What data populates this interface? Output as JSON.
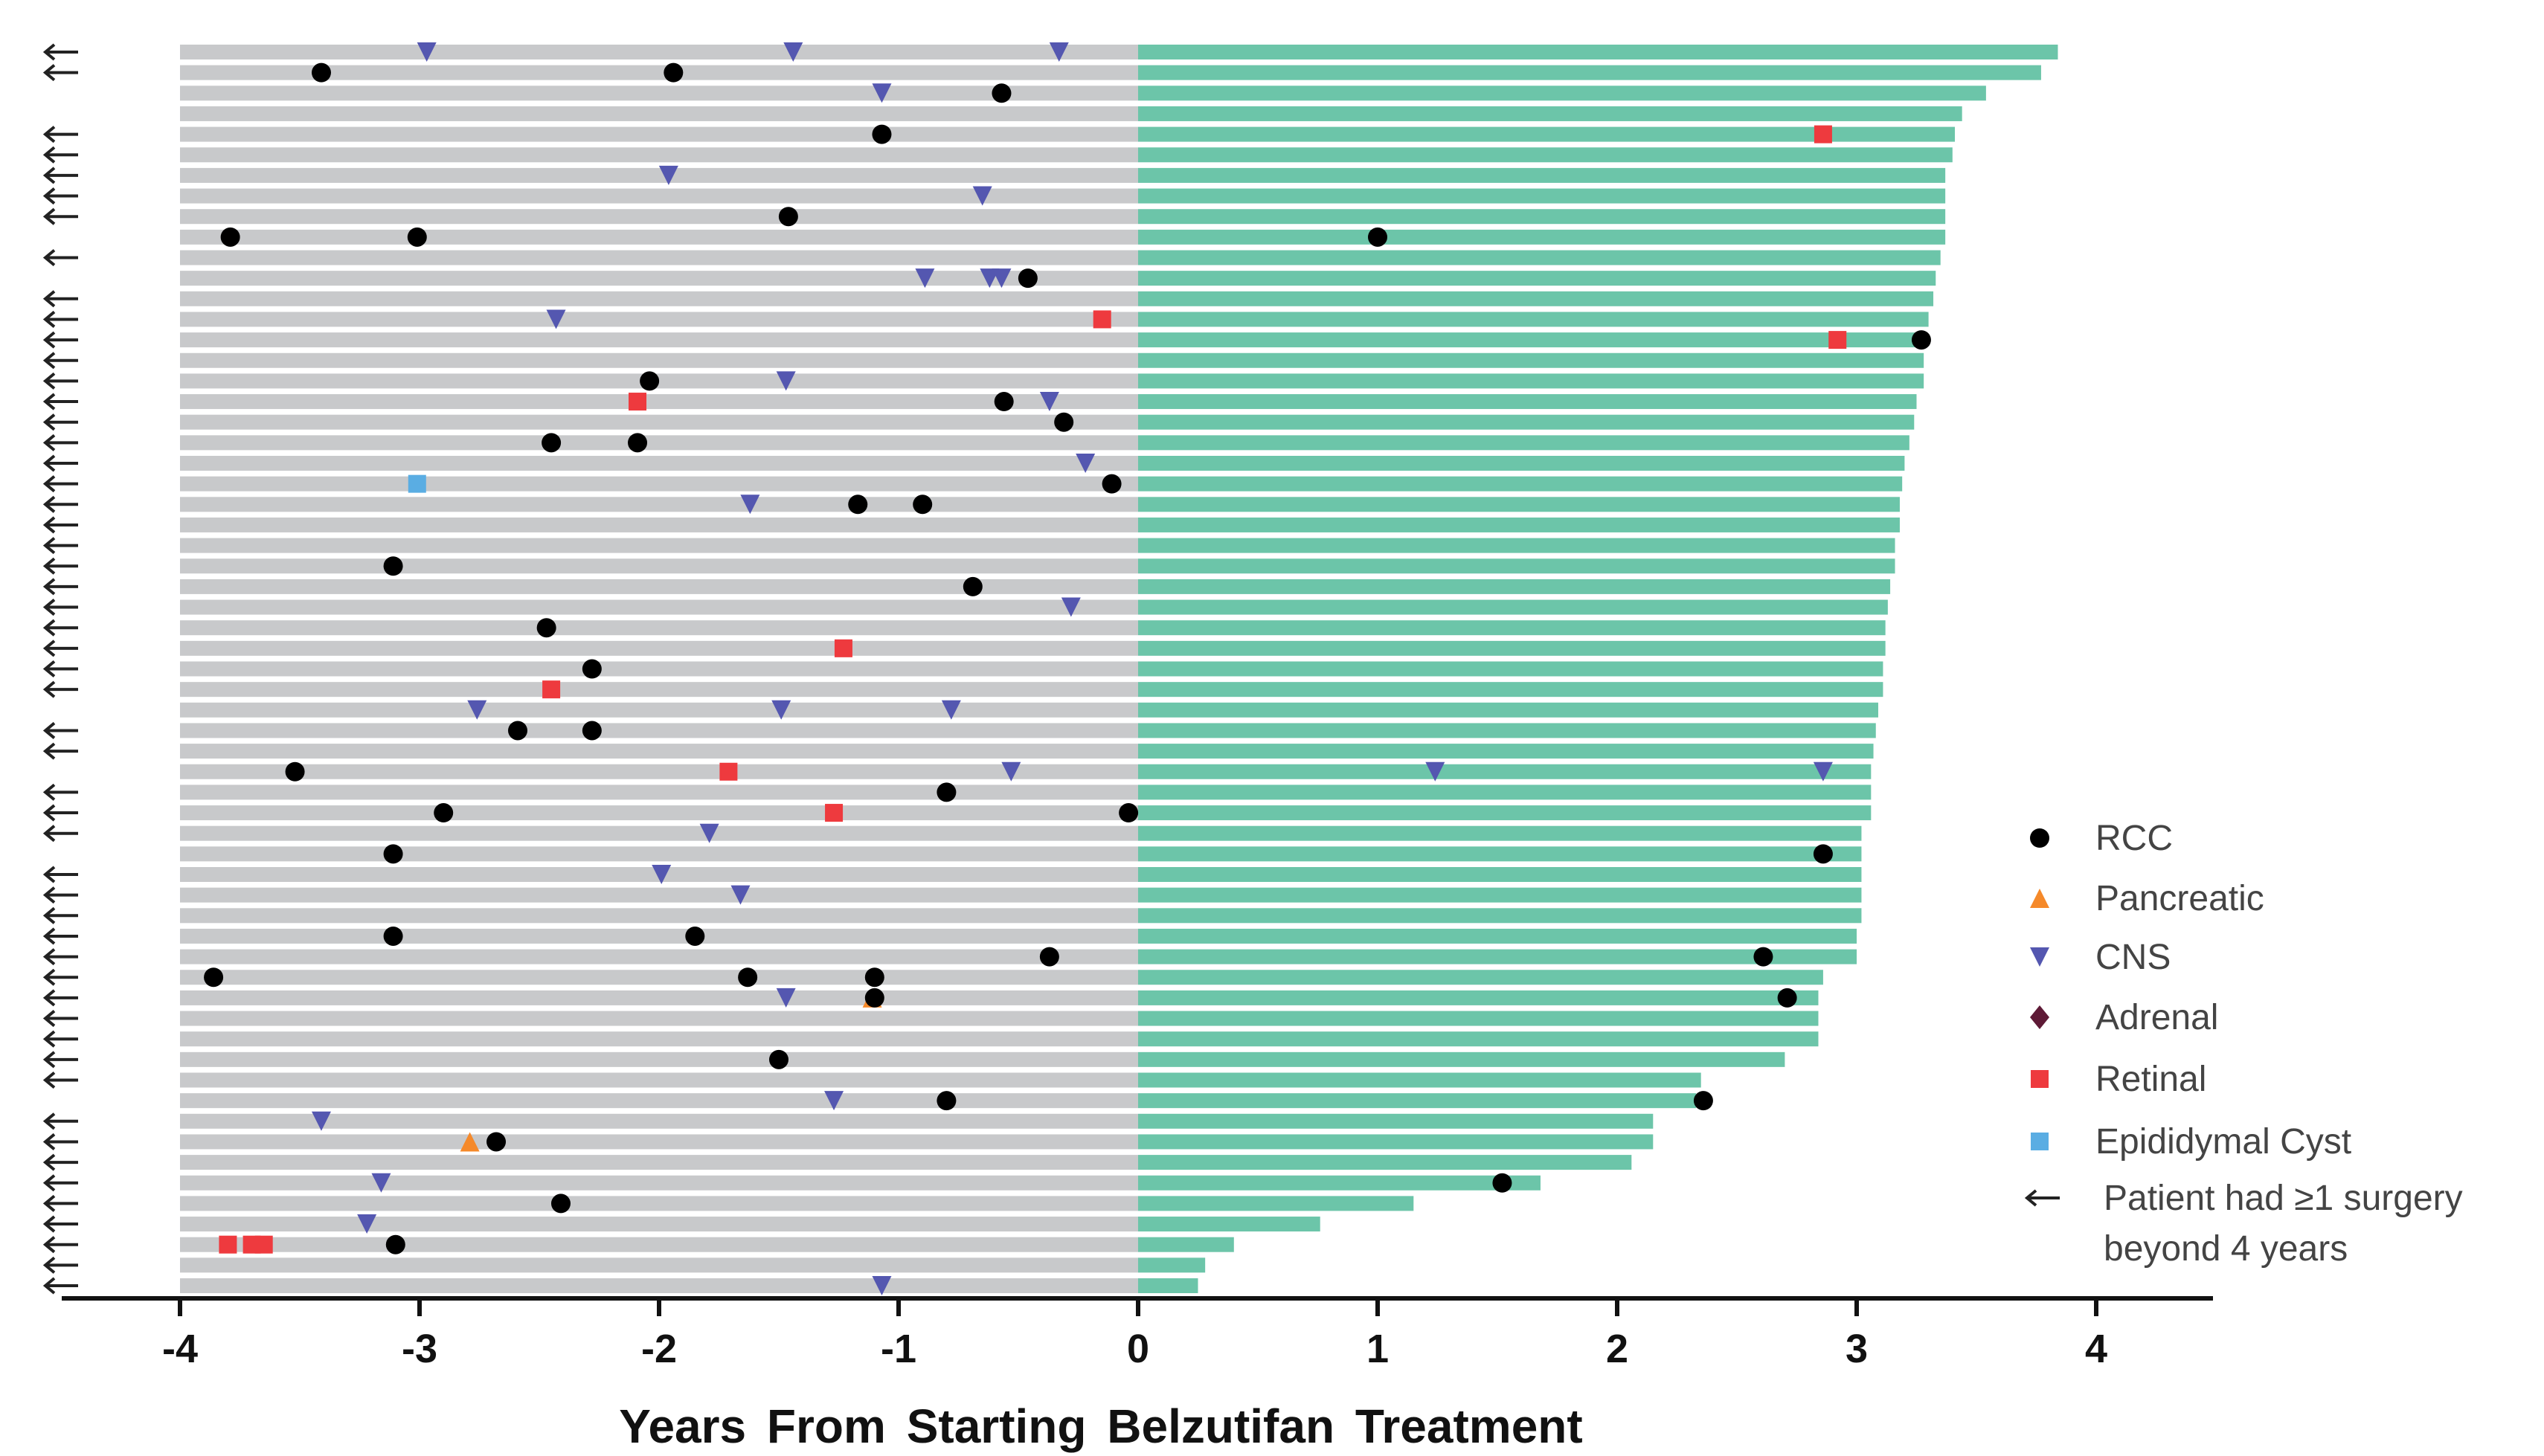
{
  "chart_data": {
    "type": "swimmer",
    "title": "",
    "xlabel": "Years From Starting Belzutifan Treatment",
    "ylabel": "",
    "xlim": [
      -4,
      4
    ],
    "xticks": [
      "-4",
      "-3",
      "-2",
      "-1",
      "0",
      "1",
      "2",
      "3",
      "4"
    ],
    "pre_treatment_start": -4,
    "colors": {
      "pre_bar": "#c8c9cb",
      "treatment_bar": "#6cc5a9",
      "RCC": "#000000",
      "Pancreatic": "#f5892a",
      "CNS": "#5457b0",
      "Adrenal": "#5e1a36",
      "Retinal": "#ee3a3e",
      "Epididymal Cyst": "#5aade3"
    },
    "legend_position": "right",
    "legend": [
      {
        "name": "RCC",
        "shape": "circle"
      },
      {
        "name": "Pancreatic",
        "shape": "triangle-up"
      },
      {
        "name": "CNS",
        "shape": "triangle-down"
      },
      {
        "name": "Adrenal",
        "shape": "diamond"
      },
      {
        "name": "Retinal",
        "shape": "square"
      },
      {
        "name": "Epididymal Cyst",
        "shape": "square"
      }
    ],
    "arrow_legend": [
      "Patient had ≥1 surgery",
      "beyond 4 years"
    ],
    "treatment_years": [
      3.84,
      3.77,
      3.54,
      3.44,
      3.41,
      3.4,
      3.37,
      3.37,
      3.37,
      3.37,
      3.35,
      3.33,
      3.32,
      3.3,
      3.29,
      3.28,
      3.28,
      3.25,
      3.24,
      3.22,
      3.2,
      3.19,
      3.18,
      3.18,
      3.16,
      3.16,
      3.14,
      3.13,
      3.12,
      3.12,
      3.11,
      3.11,
      3.09,
      3.08,
      3.07,
      3.06,
      3.06,
      3.06,
      3.02,
      3.02,
      3.02,
      3.02,
      3.02,
      3.0,
      3.0,
      2.86,
      2.84,
      2.84,
      2.84,
      2.7,
      2.35,
      2.33,
      2.15,
      2.15,
      2.06,
      1.68,
      1.15,
      0.76,
      0.4,
      0.28,
      0.25
    ],
    "surgery_beyond_4y": [
      1,
      1,
      0,
      0,
      1,
      1,
      1,
      1,
      1,
      0,
      1,
      0,
      1,
      1,
      1,
      1,
      1,
      1,
      1,
      1,
      1,
      1,
      1,
      1,
      1,
      1,
      1,
      1,
      1,
      1,
      1,
      1,
      0,
      1,
      1,
      0,
      1,
      1,
      1,
      0,
      1,
      1,
      1,
      1,
      1,
      1,
      1,
      1,
      1,
      1,
      1,
      0,
      1,
      1,
      1,
      1,
      1,
      1,
      1,
      1,
      1
    ],
    "events": [
      [
        [
          "CNS",
          -2.97
        ],
        [
          "CNS",
          -1.44
        ],
        [
          "CNS",
          -0.33
        ]
      ],
      [
        [
          "RCC",
          -3.41
        ],
        [
          "RCC",
          -1.94
        ]
      ],
      [
        [
          "CNS",
          -1.07
        ],
        [
          "RCC",
          -0.57
        ]
      ],
      [],
      [
        [
          "RCC",
          -1.07
        ],
        [
          "Retinal",
          2.86
        ]
      ],
      [],
      [
        [
          "CNS",
          -1.96
        ]
      ],
      [
        [
          "CNS",
          -0.65
        ]
      ],
      [
        [
          "RCC",
          -1.46
        ]
      ],
      [
        [
          "RCC",
          -3.79
        ],
        [
          "RCC",
          -3.01
        ],
        [
          "RCC",
          1.0
        ]
      ],
      [],
      [
        [
          "CNS",
          -0.89
        ],
        [
          "CNS",
          -0.62
        ],
        [
          "CNS",
          -0.57
        ],
        [
          "RCC",
          -0.46
        ]
      ],
      [],
      [
        [
          "CNS",
          -2.43
        ],
        [
          "Retinal",
          -0.15
        ]
      ],
      [
        [
          "Retinal",
          2.92
        ],
        [
          "RCC",
          3.27
        ]
      ],
      [],
      [
        [
          "RCC",
          -2.04
        ],
        [
          "CNS",
          -1.47
        ]
      ],
      [
        [
          "Retinal",
          -2.09
        ],
        [
          "RCC",
          -0.56
        ],
        [
          "CNS",
          -0.37
        ]
      ],
      [
        [
          "RCC",
          -0.31
        ]
      ],
      [
        [
          "RCC",
          -2.45
        ],
        [
          "RCC",
          -2.09
        ]
      ],
      [
        [
          "CNS",
          -0.22
        ]
      ],
      [
        [
          "Epididymal Cyst",
          -3.01
        ],
        [
          "RCC",
          -0.11
        ]
      ],
      [
        [
          "CNS",
          -1.62
        ],
        [
          "RCC",
          -1.17
        ],
        [
          "RCC",
          -0.9
        ]
      ],
      [],
      [],
      [
        [
          "RCC",
          -3.11
        ]
      ],
      [
        [
          "RCC",
          -0.69
        ]
      ],
      [
        [
          "CNS",
          -0.28
        ]
      ],
      [
        [
          "RCC",
          -2.47
        ]
      ],
      [
        [
          "Retinal",
          -1.23
        ]
      ],
      [
        [
          "RCC",
          -2.28
        ]
      ],
      [
        [
          "Retinal",
          -2.45
        ]
      ],
      [
        [
          "CNS",
          -2.76
        ],
        [
          "CNS",
          -1.49
        ],
        [
          "CNS",
          -0.78
        ]
      ],
      [
        [
          "RCC",
          -2.59
        ],
        [
          "RCC",
          -2.28
        ]
      ],
      [],
      [
        [
          "RCC",
          -3.52
        ],
        [
          "Retinal",
          -1.71
        ],
        [
          "CNS",
          -0.53
        ],
        [
          "CNS",
          1.24
        ],
        [
          "CNS",
          2.86
        ]
      ],
      [
        [
          "RCC",
          -0.8
        ]
      ],
      [
        [
          "RCC",
          -2.9
        ],
        [
          "Retinal",
          -1.27
        ],
        [
          "RCC",
          -0.04
        ]
      ],
      [
        [
          "CNS",
          -1.79
        ]
      ],
      [
        [
          "RCC",
          -3.11
        ],
        [
          "RCC",
          2.86
        ]
      ],
      [
        [
          "CNS",
          -1.99
        ]
      ],
      [
        [
          "CNS",
          -1.66
        ]
      ],
      [],
      [
        [
          "RCC",
          -3.11
        ],
        [
          "RCC",
          -1.85
        ]
      ],
      [
        [
          "RCC",
          -0.37
        ],
        [
          "RCC",
          2.61
        ]
      ],
      [
        [
          "RCC",
          -3.86
        ],
        [
          "RCC",
          -1.63
        ],
        [
          "RCC",
          -1.1
        ]
      ],
      [
        [
          "CNS",
          -1.47
        ],
        [
          "Pancreatic",
          -1.11
        ],
        [
          "RCC",
          -1.1
        ],
        [
          "RCC",
          2.71
        ]
      ],
      [],
      [],
      [
        [
          "RCC",
          -1.5
        ]
      ],
      [],
      [
        [
          "CNS",
          -1.27
        ],
        [
          "RCC",
          -0.8
        ],
        [
          "RCC",
          2.36
        ]
      ],
      [
        [
          "CNS",
          -3.41
        ]
      ],
      [
        [
          "Pancreatic",
          -2.79
        ],
        [
          "RCC",
          -2.68
        ]
      ],
      [],
      [
        [
          "CNS",
          -3.16
        ],
        [
          "RCC",
          1.52
        ]
      ],
      [
        [
          "RCC",
          -2.41
        ]
      ],
      [
        [
          "CNS",
          -3.22
        ]
      ],
      [
        [
          "Retinal",
          -3.8
        ],
        [
          "Retinal",
          -3.7
        ],
        [
          "Retinal",
          -3.65
        ],
        [
          "RCC",
          -3.1
        ]
      ],
      [],
      [
        [
          "CNS",
          -1.07
        ]
      ]
    ]
  }
}
